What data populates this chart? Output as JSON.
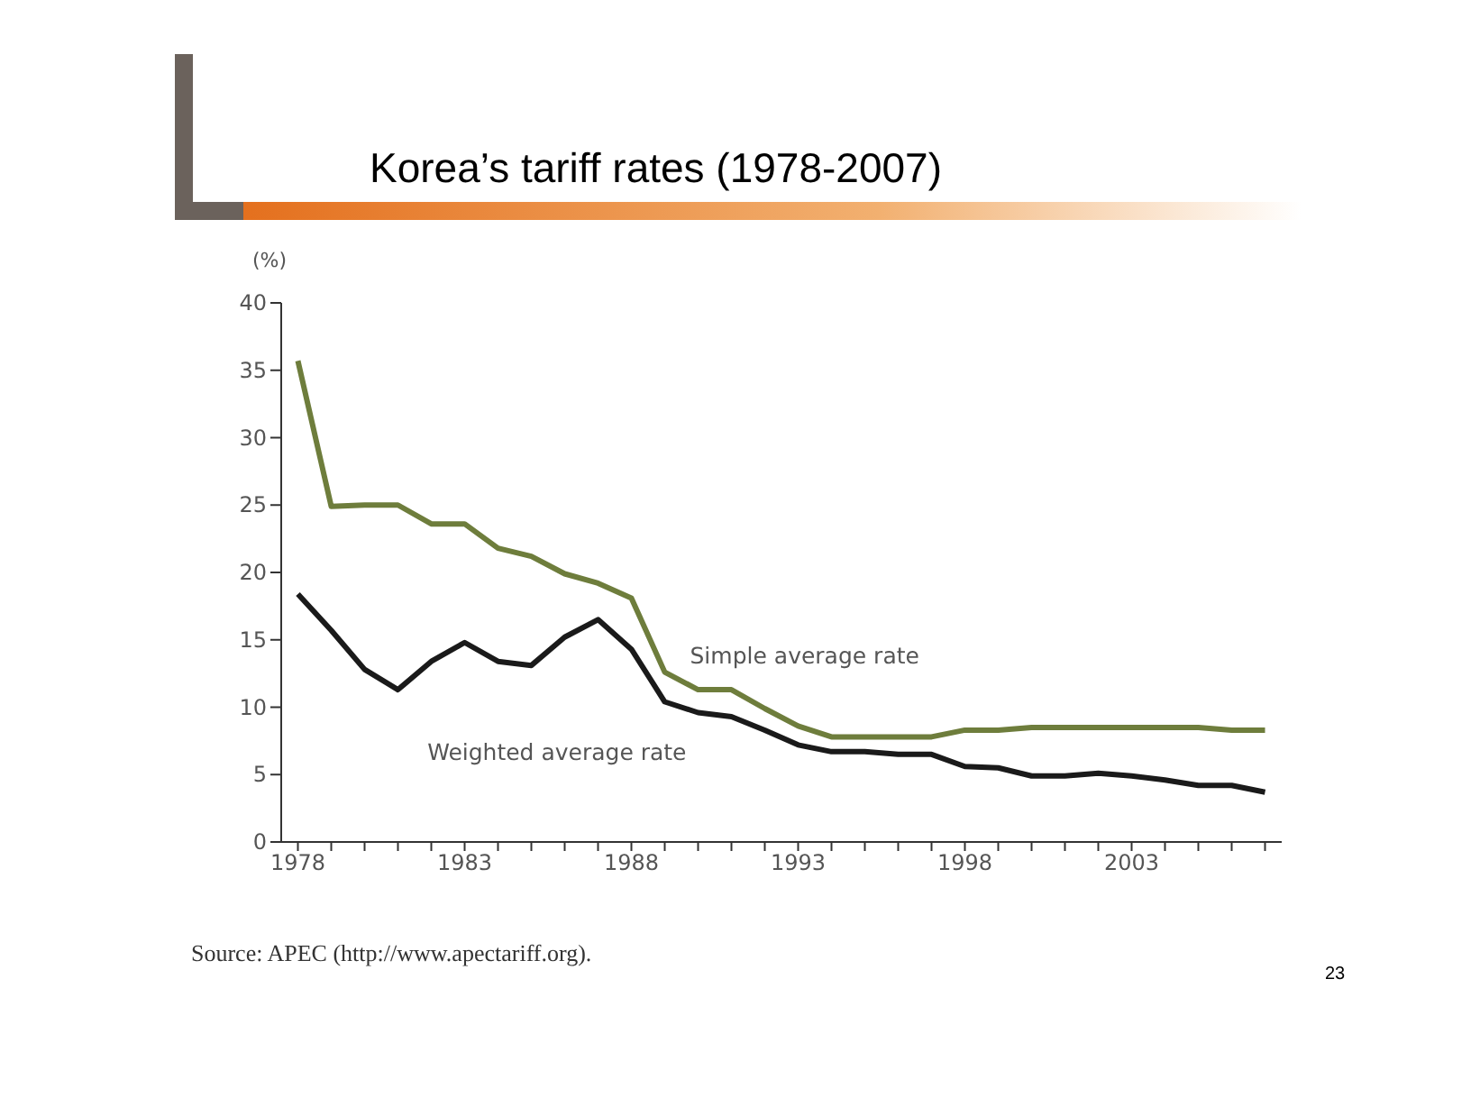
{
  "chart_data": {
    "type": "line",
    "title": "Korea’s tariff rates (1978-2007)",
    "ylabel": "(%)",
    "x": [
      1978,
      1979,
      1980,
      1981,
      1982,
      1983,
      1984,
      1985,
      1986,
      1987,
      1988,
      1989,
      1990,
      1991,
      1992,
      1993,
      1994,
      1995,
      1996,
      1997,
      1998,
      1999,
      2000,
      2001,
      2002,
      2003,
      2004,
      2005,
      2006,
      2007
    ],
    "series": [
      {
        "name": "Simple average rate",
        "color": "#6e7d3c",
        "values": [
          35.7,
          24.9,
          25,
          25,
          23.6,
          23.6,
          21.8,
          21.2,
          19.9,
          19.2,
          18.1,
          12.6,
          11.3,
          11.3,
          9.9,
          8.6,
          7.8,
          7.8,
          7.8,
          7.8,
          8.3,
          8.3,
          8.5,
          8.5,
          8.5,
          8.5,
          8.5,
          8.5,
          8.3,
          8.3
        ]
      },
      {
        "name": "Weighted average rate",
        "color": "#1a1a1a",
        "values": [
          18.4,
          15.7,
          12.8,
          11.3,
          13.4,
          14.8,
          13.4,
          13.1,
          15.2,
          16.5,
          14.3,
          10.4,
          9.6,
          9.3,
          8.3,
          7.2,
          6.7,
          6.7,
          6.5,
          6.5,
          5.6,
          5.5,
          4.9,
          4.9,
          5.1,
          4.9,
          4.6,
          4.2,
          4.2,
          3.7
        ]
      }
    ],
    "xlim": [
      1977.5,
      2007.5
    ],
    "xticks": [
      1978,
      {
        "value": 1979,
        "label": null
      },
      {
        "value": 1980,
        "label": null
      },
      {
        "value": 1981,
        "label": null
      },
      {
        "value": 1982,
        "label": null
      },
      1983,
      {
        "value": 1984,
        "label": null
      },
      {
        "value": 1985,
        "label": null
      },
      {
        "value": 1986,
        "label": null
      },
      {
        "value": 1987,
        "label": null
      },
      1988,
      {
        "value": 1989,
        "label": null
      },
      {
        "value": 1990,
        "label": null
      },
      {
        "value": 1991,
        "label": null
      },
      {
        "value": 1992,
        "label": null
      },
      1993,
      {
        "value": 1994,
        "label": null
      },
      {
        "value": 1995,
        "label": null
      },
      {
        "value": 1996,
        "label": null
      },
      {
        "value": 1997,
        "label": null
      },
      1998,
      {
        "value": 1999,
        "label": null
      },
      {
        "value": 2000,
        "label": null
      },
      {
        "value": 2001,
        "label": null
      },
      {
        "value": 2002,
        "label": null
      },
      2003,
      {
        "value": 2004,
        "label": null
      },
      {
        "value": 2005,
        "label": null
      },
      {
        "value": 2006,
        "label": null
      },
      {
        "value": 2007,
        "label": null
      }
    ],
    "ylim": [
      0,
      40
    ],
    "yticks": [
      0,
      5,
      10,
      15,
      20,
      25,
      30,
      35,
      40
    ],
    "grid": false,
    "legend": false,
    "marker": "none",
    "line_style": "solid",
    "annotations": [
      "Source: APEC (http://www.apectariff.org).",
      "23"
    ]
  }
}
